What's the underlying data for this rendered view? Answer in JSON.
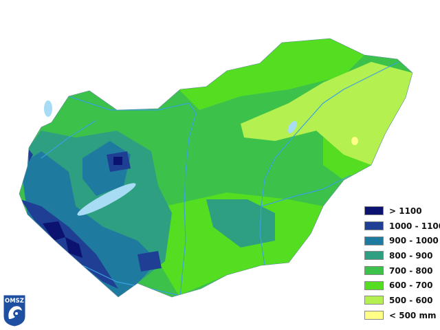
{
  "map": {
    "region": "Hungary",
    "type": "choropleth-precipitation"
  },
  "legend": {
    "items": [
      {
        "label": "> 1100",
        "color": "#0b1270"
      },
      {
        "label": "1000 - 1100",
        "color": "#1f3f94"
      },
      {
        "label": "900 - 1000",
        "color": "#1f7aa0"
      },
      {
        "label": "800 - 900",
        "color": "#2e9f80"
      },
      {
        "label": "700 - 800",
        "color": "#3cc24a"
      },
      {
        "label": "600 - 700",
        "color": "#55dd22"
      },
      {
        "label": "500 - 600",
        "color": "#b4f050"
      },
      {
        "label": "< 500 mm",
        "color": "#ffff88"
      }
    ]
  },
  "logo": {
    "text": "OMSZ",
    "color": "#1f4fa0"
  },
  "colors": {
    "water": "#a8dcf5",
    "river": "#3aa0e0"
  }
}
